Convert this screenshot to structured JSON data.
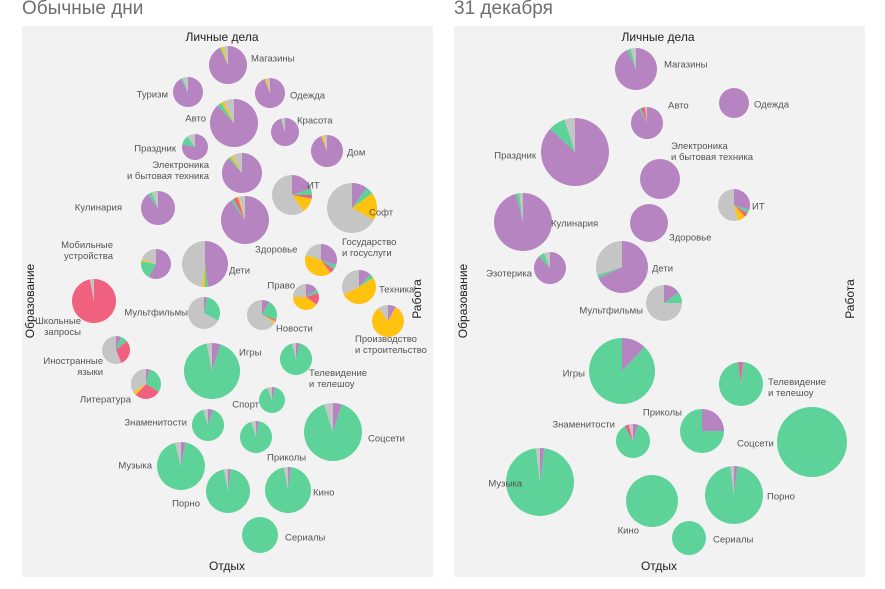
{
  "colors": {
    "personal": "#b584c1",
    "rest": "#5dd39a",
    "education": "#f0607f",
    "work": "#ffc20e",
    "other": "#c5c5c5",
    "panel": "#f3f2f2"
  },
  "series_colors": [
    "#b584c1",
    "#5dd39a",
    "#f0607f",
    "#ffc20e",
    "#c5c5c5"
  ],
  "panels": [
    {
      "title": "Обычные дни",
      "axes": {
        "top": "Личные дела",
        "bottom": "Отдых",
        "left": "Образование",
        "right": "Работа"
      },
      "bubbles": [
        {
          "name": "Магазины",
          "label": [
            "Магазины"
          ],
          "values": [
            93,
            1,
            0,
            2,
            4
          ]
        },
        {
          "name": "Туризм",
          "label": [
            "Туризм"
          ],
          "values": [
            92,
            2,
            0,
            0,
            6
          ]
        },
        {
          "name": "Одежда",
          "label": [
            "Одежда"
          ],
          "values": [
            94,
            0,
            0,
            2,
            4
          ]
        },
        {
          "name": "Авто",
          "label": [
            "Авто"
          ],
          "values": [
            88,
            3,
            0,
            2,
            7
          ]
        },
        {
          "name": "Красота",
          "label": [
            "Красота"
          ],
          "values": [
            95,
            1,
            0,
            0,
            4
          ]
        },
        {
          "name": "Праздник",
          "label": [
            "Праздник"
          ],
          "values": [
            78,
            12,
            0,
            0,
            10
          ]
        },
        {
          "name": "Дом",
          "label": [
            "Дом"
          ],
          "values": [
            94,
            0,
            0,
            2,
            4
          ]
        },
        {
          "name": "Электроника и бытовая техника",
          "label": [
            "Электроника",
            "и бытовая техника"
          ],
          "values": [
            88,
            2,
            0,
            2,
            8
          ]
        },
        {
          "name": "ИТ",
          "label": [
            "ИТ"
          ],
          "values": [
            20,
            5,
            3,
            12,
            60
          ]
        },
        {
          "name": "Кулинария",
          "label": [
            "Кулинария"
          ],
          "values": [
            90,
            4,
            0,
            0,
            6
          ]
        },
        {
          "name": "Софт",
          "label": [
            "Софт"
          ],
          "values": [
            10,
            5,
            0,
            18,
            67
          ]
        },
        {
          "name": "Здоровье",
          "label": [
            "Здоровье"
          ],
          "values": [
            90,
            2,
            3,
            1,
            4
          ]
        },
        {
          "name": "Мобильные устройства",
          "label": [
            "Мобильные",
            "устройства"
          ],
          "values": [
            58,
            20,
            0,
            2,
            20
          ]
        },
        {
          "name": "Дети",
          "label": [
            "Дети"
          ],
          "values": [
            48,
            2,
            0,
            2,
            48
          ]
        },
        {
          "name": "Государство и госуслуги",
          "label": [
            "Государство",
            "и госуслуги"
          ],
          "values": [
            30,
            5,
            5,
            40,
            20
          ]
        },
        {
          "name": "Техника",
          "label": [
            "Техника"
          ],
          "values": [
            12,
            4,
            0,
            52,
            32
          ]
        },
        {
          "name": "Право",
          "label": [
            "Право"
          ],
          "values": [
            15,
            5,
            15,
            40,
            25
          ]
        },
        {
          "name": "Школьные запросы",
          "label": [
            "Школьные",
            "запросы"
          ],
          "values": [
            0,
            0,
            97,
            0,
            3
          ]
        },
        {
          "name": "Мультфильмы",
          "label": [
            "Мультфильмы"
          ],
          "values": [
            3,
            30,
            0,
            0,
            67
          ]
        },
        {
          "name": "Новости",
          "label": [
            "Новости"
          ],
          "values": [
            8,
            22,
            2,
            2,
            66
          ]
        },
        {
          "name": "Производство и строительство",
          "label": [
            "Производство",
            "и строительство"
          ],
          "values": [
            8,
            0,
            0,
            82,
            10
          ]
        },
        {
          "name": "Иностранные языки",
          "label": [
            "Иностранные",
            "языки"
          ],
          "values": [
            6,
            8,
            30,
            0,
            56
          ]
        },
        {
          "name": "Игры",
          "label": [
            "Игры"
          ],
          "values": [
            5,
            92,
            0,
            0,
            3
          ]
        },
        {
          "name": "Телевидение и телешоу",
          "label": [
            "Телевидение",
            "и телешоу"
          ],
          "values": [
            4,
            92,
            0,
            0,
            4
          ]
        },
        {
          "name": "Литература",
          "label": [
            "Литература"
          ],
          "values": [
            4,
            30,
            28,
            4,
            34
          ]
        },
        {
          "name": "Спорт",
          "label": [
            "Спорт"
          ],
          "values": [
            4,
            90,
            0,
            0,
            6
          ]
        },
        {
          "name": "Знаменитости",
          "label": [
            "Знаменитости"
          ],
          "values": [
            5,
            90,
            0,
            0,
            5
          ]
        },
        {
          "name": "Соцсети",
          "label": [
            "Соцсети"
          ],
          "values": [
            5,
            90,
            0,
            0,
            5
          ]
        },
        {
          "name": "Приколы",
          "label": [
            "Приколы"
          ],
          "values": [
            3,
            92,
            0,
            0,
            5
          ]
        },
        {
          "name": "Музыка",
          "label": [
            "Музыка"
          ],
          "values": [
            3,
            93,
            0,
            0,
            4
          ]
        },
        {
          "name": "Порно",
          "label": [
            "Порно"
          ],
          "values": [
            2,
            95,
            0,
            0,
            3
          ]
        },
        {
          "name": "Кино",
          "label": [
            "Кино"
          ],
          "values": [
            2,
            95,
            0,
            0,
            3
          ]
        },
        {
          "name": "Сериалы",
          "label": [
            "Сериалы"
          ],
          "values": [
            0,
            100,
            0,
            0,
            0
          ]
        }
      ]
    },
    {
      "title": "31 декабря",
      "axes": {
        "top": "Личные дела",
        "bottom": "Отдых",
        "left": "Образование",
        "right": "Работа"
      },
      "bubbles": [
        {
          "name": "Магазины",
          "label": [
            "Магазины"
          ],
          "values": [
            93,
            3,
            0,
            0,
            4
          ]
        },
        {
          "name": "Авто",
          "label": [
            "Авто"
          ],
          "values": [
            92,
            2,
            4,
            0,
            2
          ]
        },
        {
          "name": "Одежда",
          "label": [
            "Одежда"
          ],
          "values": [
            100,
            0,
            0,
            0,
            0
          ]
        },
        {
          "name": "Праздник",
          "label": [
            "Праздник"
          ],
          "values": [
            87,
            8,
            0,
            0,
            5
          ]
        },
        {
          "name": "Электроника и бытовая техника",
          "label": [
            "Электроника",
            "и бытовая техника"
          ],
          "values": [
            100,
            0,
            0,
            0,
            0
          ]
        },
        {
          "name": "ИТ",
          "label": [
            "ИТ"
          ],
          "values": [
            30,
            4,
            4,
            8,
            54
          ]
        },
        {
          "name": "Кулинария",
          "label": [
            "Кулинария"
          ],
          "values": [
            96,
            2,
            0,
            0,
            2
          ]
        },
        {
          "name": "Здоровье",
          "label": [
            "Здоровье"
          ],
          "values": [
            100,
            0,
            0,
            0,
            0
          ]
        },
        {
          "name": "Эзотерика",
          "label": [
            "Эзотерика"
          ],
          "values": [
            88,
            6,
            0,
            0,
            6
          ]
        },
        {
          "name": "Дети",
          "label": [
            "Дети"
          ],
          "values": [
            68,
            2,
            0,
            0,
            30
          ]
        },
        {
          "name": "Мультфильмы",
          "label": [
            "Мультфильмы"
          ],
          "values": [
            15,
            10,
            0,
            0,
            75
          ]
        },
        {
          "name": "Игры",
          "label": [
            "Игры"
          ],
          "values": [
            12,
            88,
            0,
            0,
            0
          ]
        },
        {
          "name": "Телевидение и телешоу",
          "label": [
            "Телевидение",
            "и телешоу"
          ],
          "values": [
            2,
            96,
            2,
            0,
            0
          ]
        },
        {
          "name": "Знаменитости",
          "label": [
            "Знаменитости"
          ],
          "values": [
            5,
            87,
            4,
            0,
            4
          ]
        },
        {
          "name": "Приколы",
          "label": [
            "Приколы"
          ],
          "values": [
            25,
            75,
            0,
            0,
            0
          ]
        },
        {
          "name": "Соцсети",
          "label": [
            "Соцсети"
          ],
          "values": [
            0,
            100,
            0,
            0,
            0
          ]
        },
        {
          "name": "Музыка",
          "label": [
            "Музыка"
          ],
          "values": [
            2,
            96,
            0,
            0,
            2
          ]
        },
        {
          "name": "Кино",
          "label": [
            "Кино"
          ],
          "values": [
            0,
            100,
            0,
            0,
            0
          ]
        },
        {
          "name": "Порно",
          "label": [
            "Порно"
          ],
          "values": [
            2,
            96,
            0,
            0,
            2
          ]
        },
        {
          "name": "Сериалы",
          "label": [
            "Сериалы"
          ],
          "values": [
            0,
            100,
            0,
            0,
            0
          ]
        }
      ]
    }
  ],
  "chart_data": [
    {
      "type": "bubble-pie",
      "title": "Обычные дни",
      "axis_labels": {
        "top": "Личные дела",
        "bottom": "Отдых",
        "left": "Образование",
        "right": "Работа"
      },
      "slice_order": [
        "Личные дела",
        "Отдых",
        "Образование",
        "Работа",
        "other"
      ],
      "categories": [
        "Магазины",
        "Туризм",
        "Одежда",
        "Авто",
        "Красота",
        "Праздник",
        "Дом",
        "Электроника и бытовая техника",
        "ИТ",
        "Кулинария",
        "Софт",
        "Здоровье",
        "Мобильные устройства",
        "Дети",
        "Государство и госуслуги",
        "Техника",
        "Право",
        "Школьные запросы",
        "Мультфильмы",
        "Новости",
        "Производство и строительство",
        "Иностранные языки",
        "Игры",
        "Телевидение и телешоу",
        "Литература",
        "Спорт",
        "Знаменитости",
        "Соцсети",
        "Приколы",
        "Музыка",
        "Порно",
        "Кино",
        "Сериалы"
      ]
    },
    {
      "type": "bubble-pie",
      "title": "31 декабря",
      "axis_labels": {
        "top": "Личные дела",
        "bottom": "Отдых",
        "left": "Образование",
        "right": "Работа"
      },
      "slice_order": [
        "Личные дела",
        "Отдых",
        "Образование",
        "Работа",
        "other"
      ],
      "categories": [
        "Магазины",
        "Авто",
        "Одежда",
        "Праздник",
        "Электроника и бытовая техника",
        "ИТ",
        "Кулинария",
        "Здоровье",
        "Эзотерика",
        "Дети",
        "Мультфильмы",
        "Игры",
        "Телевидение и телешоу",
        "Знаменитости",
        "Приколы",
        "Соцсети",
        "Музыка",
        "Кино",
        "Порно",
        "Сериалы"
      ]
    }
  ]
}
